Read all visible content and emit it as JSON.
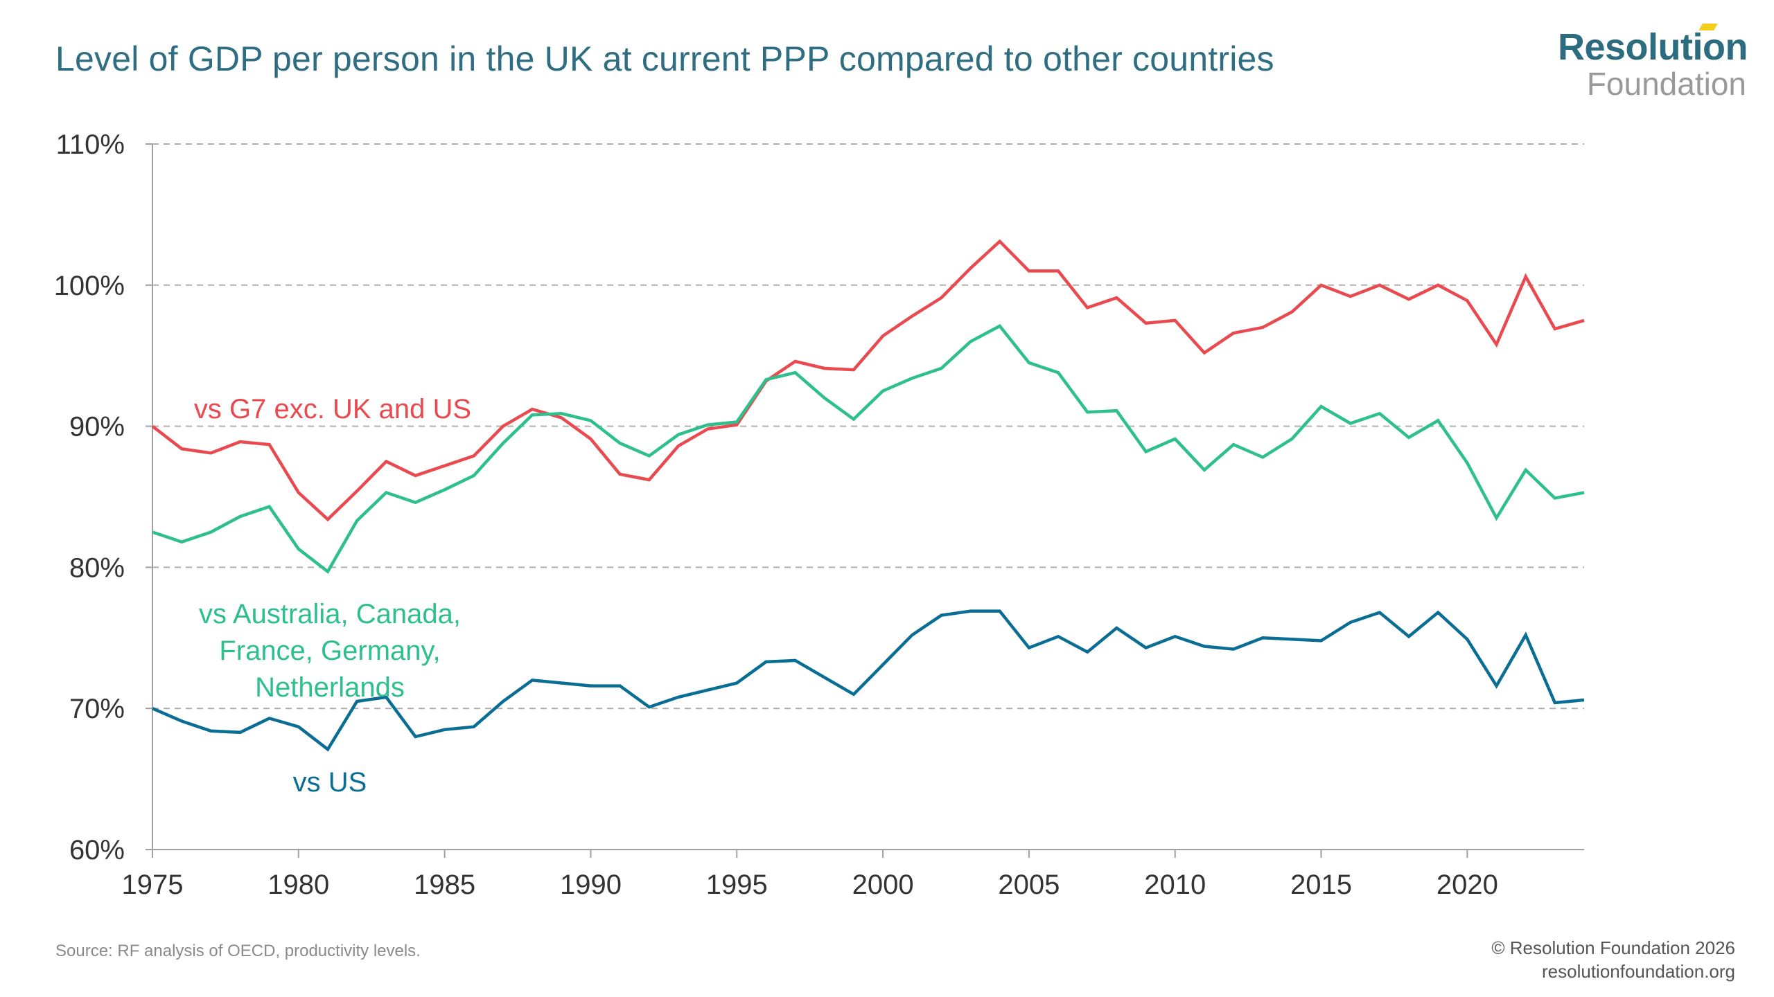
{
  "header": {
    "title": "Level of GDP per person in the UK at current PPP compared to other countries"
  },
  "logo": {
    "line1": "Resolution",
    "line2": "Foundation",
    "accent_color": "#f3cf1d"
  },
  "footer": {
    "source": "Source: RF analysis of OECD, productivity levels.",
    "copyright": "© Resolution Foundation 2026",
    "website": "resolutionfoundation.org"
  },
  "chart_data": {
    "type": "line",
    "title": "Level of GDP per person in the UK at current PPP compared to other countries",
    "xlabel": "",
    "ylabel": "",
    "x": [
      1975,
      1976,
      1977,
      1978,
      1979,
      1980,
      1981,
      1982,
      1983,
      1984,
      1985,
      1986,
      1987,
      1988,
      1989,
      1990,
      1991,
      1992,
      1993,
      1994,
      1995,
      1996,
      1997,
      1998,
      1999,
      2000,
      2001,
      2002,
      2003,
      2004,
      2005,
      2006,
      2007,
      2008,
      2009,
      2010,
      2011,
      2012,
      2013,
      2014,
      2015,
      2016,
      2017,
      2018,
      2019,
      2020,
      2021,
      2022,
      2023,
      2024
    ],
    "xlim": [
      1975,
      2024
    ],
    "ylim": [
      60,
      110
    ],
    "x_ticks": [
      1975,
      1980,
      1985,
      1990,
      1995,
      2000,
      2005,
      2010,
      2015,
      2020
    ],
    "x_tick_labels": [
      "1975",
      "1980",
      "1985",
      "1990",
      "1995",
      "2000",
      "2005",
      "2010",
      "2015",
      "2020"
    ],
    "y_ticks": [
      60,
      70,
      80,
      90,
      100,
      110
    ],
    "y_tick_labels": [
      "60%",
      "70%",
      "80%",
      "90%",
      "100%",
      "110%"
    ],
    "grid": "horizontal dashed",
    "legend": "inline labels",
    "series": [
      {
        "name": "vs G7 exc. UK and US",
        "label_lines": [
          "vs G7 exc. UK and US"
        ],
        "color": "#e84a4f",
        "values": [
          90.0,
          88.4,
          88.1,
          88.9,
          88.7,
          85.3,
          83.4,
          85.4,
          87.5,
          86.5,
          87.2,
          87.9,
          90.0,
          91.2,
          90.6,
          89.1,
          86.6,
          86.2,
          88.6,
          89.8,
          90.1,
          93.2,
          94.6,
          94.1,
          94.0,
          96.4,
          97.8,
          99.1,
          101.2,
          103.1,
          101.0,
          101.0,
          98.4,
          99.1,
          97.3,
          97.5,
          95.2,
          96.6,
          97.0,
          98.1,
          100.0,
          99.2,
          100.0,
          99.0,
          100.0,
          98.9,
          95.8,
          100.6,
          96.9,
          97.5
        ]
      },
      {
        "name": "vs Australia, Canada, France, Germany, Netherlands",
        "label_lines": [
          "vs Australia, Canada,",
          "France, Germany,",
          "Netherlands"
        ],
        "color": "#2dbf8c",
        "values": [
          82.5,
          81.8,
          82.5,
          83.6,
          84.3,
          81.3,
          79.7,
          83.3,
          85.3,
          84.6,
          85.5,
          86.5,
          88.8,
          90.8,
          90.9,
          90.4,
          88.8,
          87.9,
          89.4,
          90.1,
          90.3,
          93.3,
          93.8,
          92.0,
          90.5,
          92.5,
          93.4,
          94.1,
          96.0,
          97.1,
          94.5,
          93.8,
          91.0,
          91.1,
          88.2,
          89.1,
          86.9,
          88.7,
          87.8,
          89.1,
          91.4,
          90.2,
          90.9,
          89.2,
          90.4,
          87.4,
          83.5,
          86.9,
          84.9,
          85.3
        ]
      },
      {
        "name": "vs US",
        "label_lines": [
          "vs US"
        ],
        "color": "#0a6e94",
        "values": [
          70.0,
          69.1,
          68.4,
          68.3,
          69.3,
          68.7,
          67.1,
          70.5,
          70.8,
          68.0,
          68.5,
          68.7,
          70.5,
          72.0,
          71.8,
          71.6,
          71.6,
          70.1,
          70.8,
          71.3,
          71.8,
          73.3,
          73.4,
          72.2,
          71.0,
          73.1,
          75.2,
          76.6,
          76.9,
          76.9,
          74.3,
          75.1,
          74.0,
          75.7,
          74.3,
          75.1,
          74.4,
          74.2,
          75.0,
          74.9,
          74.8,
          76.1,
          76.8,
          75.1,
          76.8,
          74.9,
          71.6,
          75.2,
          70.4,
          70.6
        ]
      }
    ]
  }
}
